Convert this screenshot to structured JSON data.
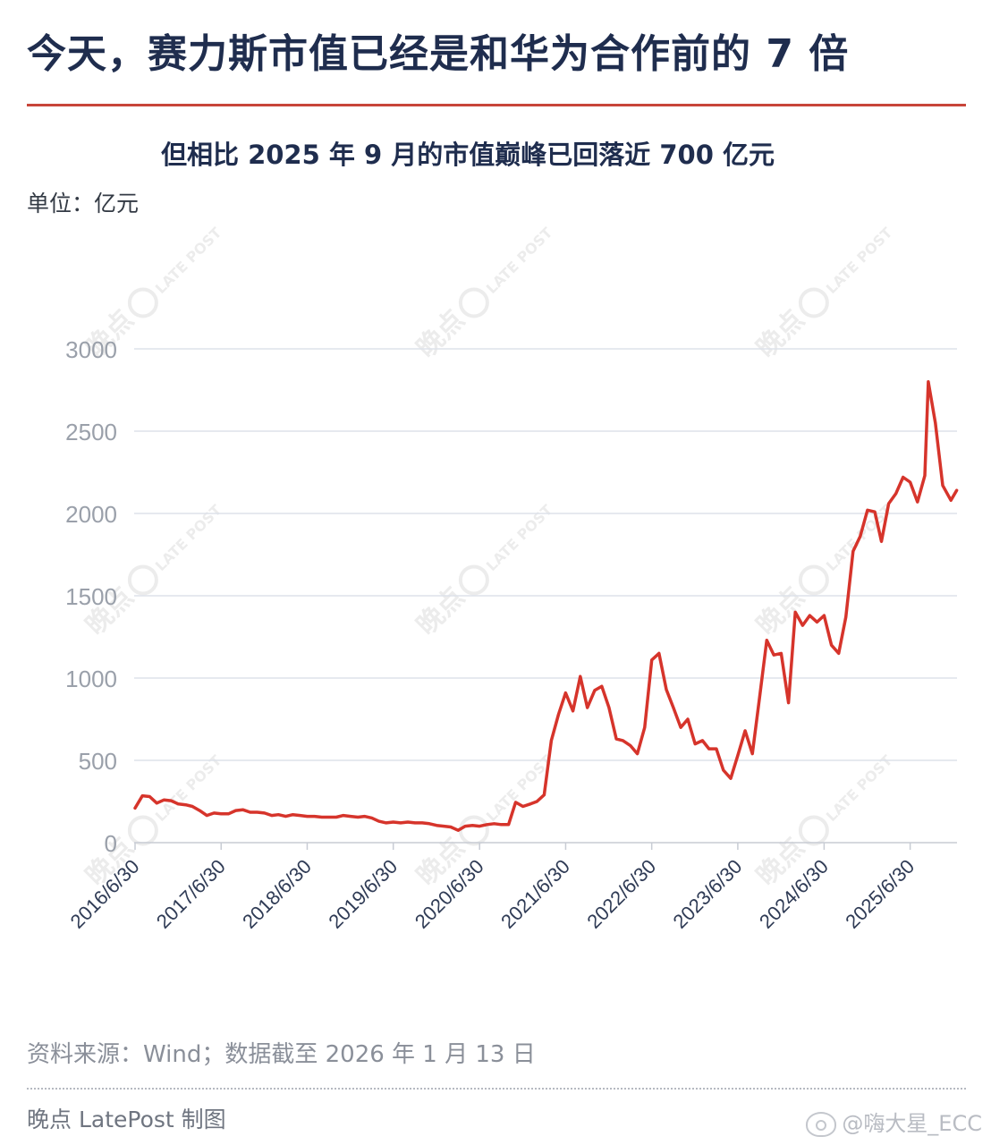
{
  "header": {
    "title": "今天，赛力斯市值已经是和华为合作前的 7 倍",
    "subtitle": "但相比 2025 年 9 月的市值巅峰已回落近 700 亿元",
    "unit": "单位：亿元"
  },
  "footer": {
    "source": "资料来源：Wind；数据截至 2026 年 1 月 13 日",
    "credit": "晚点 LatePost 制图",
    "weibo_handle": "@嗨大星_ECC"
  },
  "watermark": {
    "text": "晚点",
    "tag": "LATE POST"
  },
  "colors": {
    "line": "#d6342b",
    "title": "#1f2d4e",
    "rule": "#c8453a",
    "grid": "#dde2ea",
    "axis": "#c8ccd4"
  },
  "chart_data": {
    "type": "line",
    "title": "但相比 2025 年 9 月的市值巅峰已回落近 700 亿元",
    "ylabel": "单位：亿元",
    "ylim": [
      0,
      3000
    ],
    "yticks": [
      0,
      500,
      1000,
      1500,
      2000,
      2500,
      3000
    ],
    "xlim": [
      "2016-06-30",
      "2026-01-13"
    ],
    "xticks": [
      "2016/6/30",
      "2017/6/30",
      "2018/6/30",
      "2019/6/30",
      "2020/6/30",
      "2021/6/30",
      "2022/6/30",
      "2023/6/30",
      "2024/6/30",
      "2025/6/30"
    ],
    "grid": "horizontal",
    "series": [
      {
        "points": [
          [
            "2016-06-30",
            210
          ],
          [
            "2016-07-31",
            285
          ],
          [
            "2016-08-31",
            280
          ],
          [
            "2016-09-30",
            240
          ],
          [
            "2016-10-31",
            260
          ],
          [
            "2016-11-30",
            255
          ],
          [
            "2016-12-31",
            235
          ],
          [
            "2017-01-31",
            230
          ],
          [
            "2017-02-28",
            220
          ],
          [
            "2017-03-31",
            195
          ],
          [
            "2017-04-30",
            165
          ],
          [
            "2017-05-31",
            180
          ],
          [
            "2017-06-30",
            175
          ],
          [
            "2017-07-31",
            175
          ],
          [
            "2017-08-31",
            195
          ],
          [
            "2017-09-30",
            200
          ],
          [
            "2017-10-31",
            185
          ],
          [
            "2017-11-30",
            185
          ],
          [
            "2017-12-31",
            180
          ],
          [
            "2018-01-31",
            165
          ],
          [
            "2018-02-28",
            170
          ],
          [
            "2018-03-31",
            160
          ],
          [
            "2018-04-30",
            170
          ],
          [
            "2018-05-31",
            165
          ],
          [
            "2018-06-30",
            160
          ],
          [
            "2018-07-31",
            160
          ],
          [
            "2018-08-31",
            155
          ],
          [
            "2018-09-30",
            155
          ],
          [
            "2018-10-31",
            155
          ],
          [
            "2018-11-30",
            165
          ],
          [
            "2018-12-31",
            160
          ],
          [
            "2019-01-31",
            155
          ],
          [
            "2019-02-28",
            160
          ],
          [
            "2019-03-31",
            150
          ],
          [
            "2019-04-30",
            130
          ],
          [
            "2019-05-31",
            120
          ],
          [
            "2019-06-30",
            125
          ],
          [
            "2019-07-31",
            120
          ],
          [
            "2019-08-31",
            125
          ],
          [
            "2019-09-30",
            120
          ],
          [
            "2019-10-31",
            120
          ],
          [
            "2019-11-30",
            115
          ],
          [
            "2019-12-31",
            105
          ],
          [
            "2020-01-31",
            100
          ],
          [
            "2020-02-29",
            95
          ],
          [
            "2020-03-31",
            75
          ],
          [
            "2020-04-30",
            100
          ],
          [
            "2020-05-31",
            105
          ],
          [
            "2020-06-30",
            100
          ],
          [
            "2020-07-31",
            110
          ],
          [
            "2020-08-31",
            115
          ],
          [
            "2020-09-30",
            110
          ],
          [
            "2020-10-31",
            110
          ],
          [
            "2020-11-30",
            245
          ],
          [
            "2020-12-31",
            220
          ],
          [
            "2021-01-31",
            235
          ],
          [
            "2021-02-28",
            250
          ],
          [
            "2021-03-31",
            290
          ],
          [
            "2021-04-30",
            620
          ],
          [
            "2021-05-31",
            780
          ],
          [
            "2021-06-30",
            910
          ],
          [
            "2021-07-31",
            800
          ],
          [
            "2021-08-31",
            1010
          ],
          [
            "2021-09-30",
            820
          ],
          [
            "2021-10-31",
            925
          ],
          [
            "2021-11-30",
            950
          ],
          [
            "2021-12-31",
            820
          ],
          [
            "2022-01-31",
            630
          ],
          [
            "2022-02-28",
            620
          ],
          [
            "2022-03-31",
            590
          ],
          [
            "2022-04-30",
            540
          ],
          [
            "2022-05-31",
            700
          ],
          [
            "2022-06-30",
            1110
          ],
          [
            "2022-07-31",
            1150
          ],
          [
            "2022-08-31",
            930
          ],
          [
            "2022-09-30",
            820
          ],
          [
            "2022-10-31",
            700
          ],
          [
            "2022-11-30",
            750
          ],
          [
            "2022-12-31",
            600
          ],
          [
            "2023-01-31",
            620
          ],
          [
            "2023-02-28",
            570
          ],
          [
            "2023-03-31",
            570
          ],
          [
            "2023-04-30",
            440
          ],
          [
            "2023-05-31",
            390
          ],
          [
            "2023-06-30",
            530
          ],
          [
            "2023-07-31",
            680
          ],
          [
            "2023-08-31",
            540
          ],
          [
            "2023-09-30",
            880
          ],
          [
            "2023-10-31",
            1230
          ],
          [
            "2023-11-30",
            1140
          ],
          [
            "2023-12-31",
            1150
          ],
          [
            "2024-01-31",
            850
          ],
          [
            "2024-02-29",
            1400
          ],
          [
            "2024-03-31",
            1320
          ],
          [
            "2024-04-30",
            1380
          ],
          [
            "2024-05-31",
            1340
          ],
          [
            "2024-06-30",
            1380
          ],
          [
            "2024-07-31",
            1200
          ],
          [
            "2024-08-31",
            1150
          ],
          [
            "2024-09-30",
            1370
          ],
          [
            "2024-10-31",
            1770
          ],
          [
            "2024-11-30",
            1860
          ],
          [
            "2024-12-31",
            2020
          ],
          [
            "2025-01-31",
            2010
          ],
          [
            "2025-02-28",
            1830
          ],
          [
            "2025-03-31",
            2060
          ],
          [
            "2025-04-30",
            2120
          ],
          [
            "2025-05-31",
            2220
          ],
          [
            "2025-06-30",
            2190
          ],
          [
            "2025-07-31",
            2070
          ],
          [
            "2025-08-31",
            2230
          ],
          [
            "2025-09-15",
            2800
          ],
          [
            "2025-10-15",
            2550
          ],
          [
            "2025-11-15",
            2170
          ],
          [
            "2025-12-20",
            2080
          ],
          [
            "2026-01-13",
            2140
          ]
        ]
      }
    ]
  }
}
